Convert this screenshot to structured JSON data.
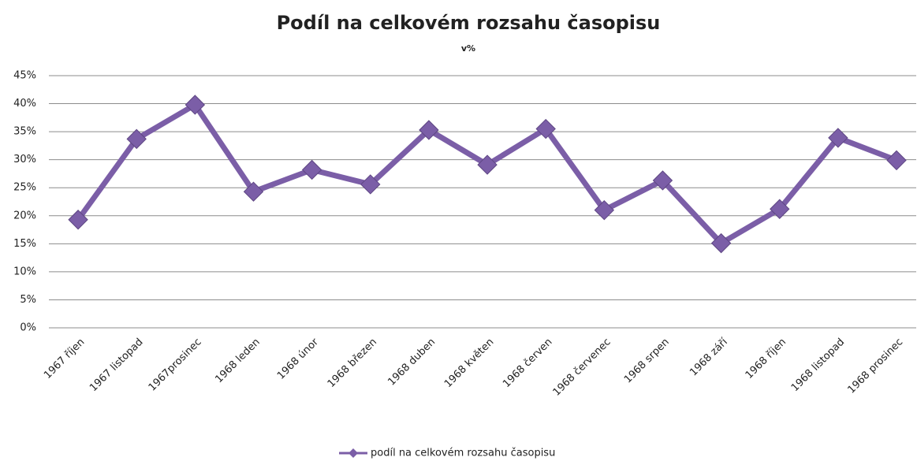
{
  "chart_data": {
    "type": "line",
    "title": "Podíl na celkovém rozsahu časopisu",
    "subtitle": "v%",
    "categories": [
      "1967 říjen",
      "1967 listopad",
      "1967prosinec",
      "1968 leden",
      "1968 únor",
      "1968 březen",
      "1968 duben",
      "1968 květen",
      "1968 červen",
      "1968 červenec",
      "1968 srpen",
      "1968 září",
      "1968 říjen",
      "1968 listopad",
      "1968 prosinec"
    ],
    "series": [
      {
        "name": "podíl na celkovém rozsahu časopisu",
        "color": "#7b5ea7",
        "values": [
          19.3,
          33.7,
          39.8,
          24.3,
          28.2,
          25.6,
          35.3,
          29.1,
          35.5,
          21.0,
          26.3,
          15.1,
          21.2,
          33.9,
          29.9
        ]
      }
    ],
    "ylim": [
      0,
      45
    ],
    "yticks": [
      {
        "value": 0,
        "label": "0%"
      },
      {
        "value": 5,
        "label": "5%"
      },
      {
        "value": 10,
        "label": "10%"
      },
      {
        "value": 15,
        "label": "15%"
      },
      {
        "value": 20,
        "label": "20%"
      },
      {
        "value": 25,
        "label": "25%"
      },
      {
        "value": 30,
        "label": "30%"
      },
      {
        "value": 35,
        "label": "35%"
      },
      {
        "value": 40,
        "label": "40%"
      },
      {
        "value": 45,
        "label": "45%"
      }
    ],
    "grid": true,
    "legend": "bottom"
  }
}
